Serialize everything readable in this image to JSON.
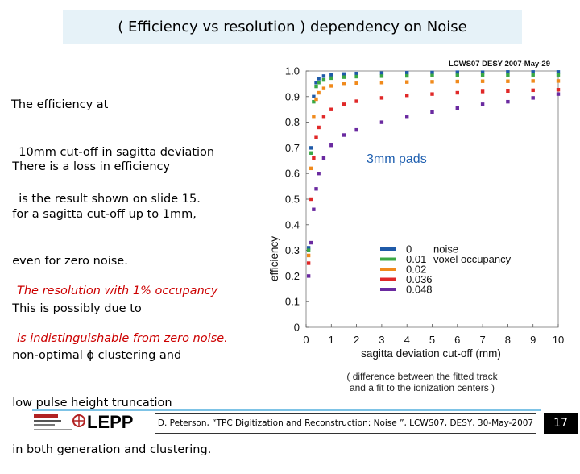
{
  "slide": {
    "title": "( Efficiency vs resolution ) dependency on Noise",
    "paragraphs": {
      "p1": [
        "The efficiency at",
        "  10mm cut-off in sagitta deviation",
        "  is the result shown on slide 15."
      ],
      "p2": [
        "  There is a loss in efficiency",
        "  for a sagitta cut-off up to 1mm,",
        "  even for zero noise.",
        "  This is possibly due to",
        "  non-optimal ϕ clustering and",
        "  low pulse height truncation",
        "  in both generation and clustering."
      ],
      "p3": [
        "The resolution with 1% occupancy",
        "is indistinguishable from zero noise."
      ]
    },
    "note": [
      "( difference between the fitted track",
      "and a fit to the ionization centers )"
    ],
    "footer": {
      "logo_text": "LEPP",
      "citation": "D. Peterson, “TPC Digitization and Reconstruction: Noise ”, LCWS07, DESY, 30-May-2007",
      "page_number": "17"
    },
    "colors": {
      "title_bg": "#e6f2f8",
      "red_text": "#cc0000",
      "footer_bar": "#7dc3e6"
    }
  },
  "chart_data": {
    "type": "scatter",
    "title": "LCWS07 DESY 2007-May-29",
    "annotation": "3mm pads",
    "xlabel": "sagitta deviation cut-off (mm)",
    "ylabel": "efficiency",
    "xlim": [
      0,
      10
    ],
    "ylim": [
      0,
      1.0
    ],
    "xticks": [
      0,
      1,
      2,
      3,
      4,
      5,
      6,
      7,
      8,
      9,
      10
    ],
    "yticks": [
      0,
      0.1,
      0.2,
      0.3,
      0.4,
      0.5,
      0.6,
      0.7,
      0.8,
      0.9,
      1.0
    ],
    "legend_title_col1": "noise",
    "legend_title_col2": "voxel occupancy",
    "legend_position": "bottom-right",
    "series": [
      {
        "name": "0",
        "color": "#1f5aa8",
        "x": [
          0.1,
          0.2,
          0.3,
          0.4,
          0.5,
          0.7,
          1.0,
          1.5,
          2,
          3,
          4,
          5,
          6,
          7,
          8,
          9,
          10
        ],
        "y": [
          0.31,
          0.7,
          0.9,
          0.955,
          0.97,
          0.98,
          0.985,
          0.988,
          0.99,
          0.992,
          0.993,
          0.994,
          0.995,
          0.995,
          0.996,
          0.996,
          0.996
        ]
      },
      {
        "name": "0.01",
        "color": "#3aa845",
        "x": [
          0.1,
          0.2,
          0.3,
          0.4,
          0.5,
          0.7,
          1.0,
          1.5,
          2,
          3,
          4,
          5,
          6,
          7,
          8,
          9,
          10
        ],
        "y": [
          0.3,
          0.68,
          0.88,
          0.94,
          0.955,
          0.965,
          0.972,
          0.976,
          0.978,
          0.98,
          0.981,
          0.982,
          0.983,
          0.984,
          0.984,
          0.985,
          0.985
        ]
      },
      {
        "name": "0.02",
        "color": "#f08a1c",
        "x": [
          0.1,
          0.2,
          0.3,
          0.4,
          0.5,
          0.7,
          1.0,
          1.5,
          2,
          3,
          4,
          5,
          6,
          7,
          8,
          9,
          10
        ],
        "y": [
          0.28,
          0.62,
          0.82,
          0.89,
          0.915,
          0.932,
          0.942,
          0.949,
          0.952,
          0.955,
          0.957,
          0.958,
          0.959,
          0.96,
          0.96,
          0.961,
          0.961
        ]
      },
      {
        "name": "0.036",
        "color": "#e02828",
        "x": [
          0.1,
          0.2,
          0.3,
          0.4,
          0.5,
          0.7,
          1.0,
          1.5,
          2,
          3,
          4,
          5,
          6,
          7,
          8,
          9,
          10
        ],
        "y": [
          0.25,
          0.5,
          0.66,
          0.74,
          0.78,
          0.82,
          0.85,
          0.87,
          0.882,
          0.895,
          0.905,
          0.91,
          0.915,
          0.92,
          0.922,
          0.925,
          0.927
        ]
      },
      {
        "name": "0.048",
        "color": "#6a2aa0",
        "x": [
          0.1,
          0.2,
          0.3,
          0.4,
          0.5,
          0.7,
          1.0,
          1.5,
          2,
          3,
          4,
          5,
          6,
          7,
          8,
          9,
          10
        ],
        "y": [
          0.2,
          0.33,
          0.46,
          0.54,
          0.6,
          0.66,
          0.71,
          0.75,
          0.77,
          0.8,
          0.82,
          0.84,
          0.855,
          0.87,
          0.88,
          0.895,
          0.91
        ]
      }
    ]
  }
}
